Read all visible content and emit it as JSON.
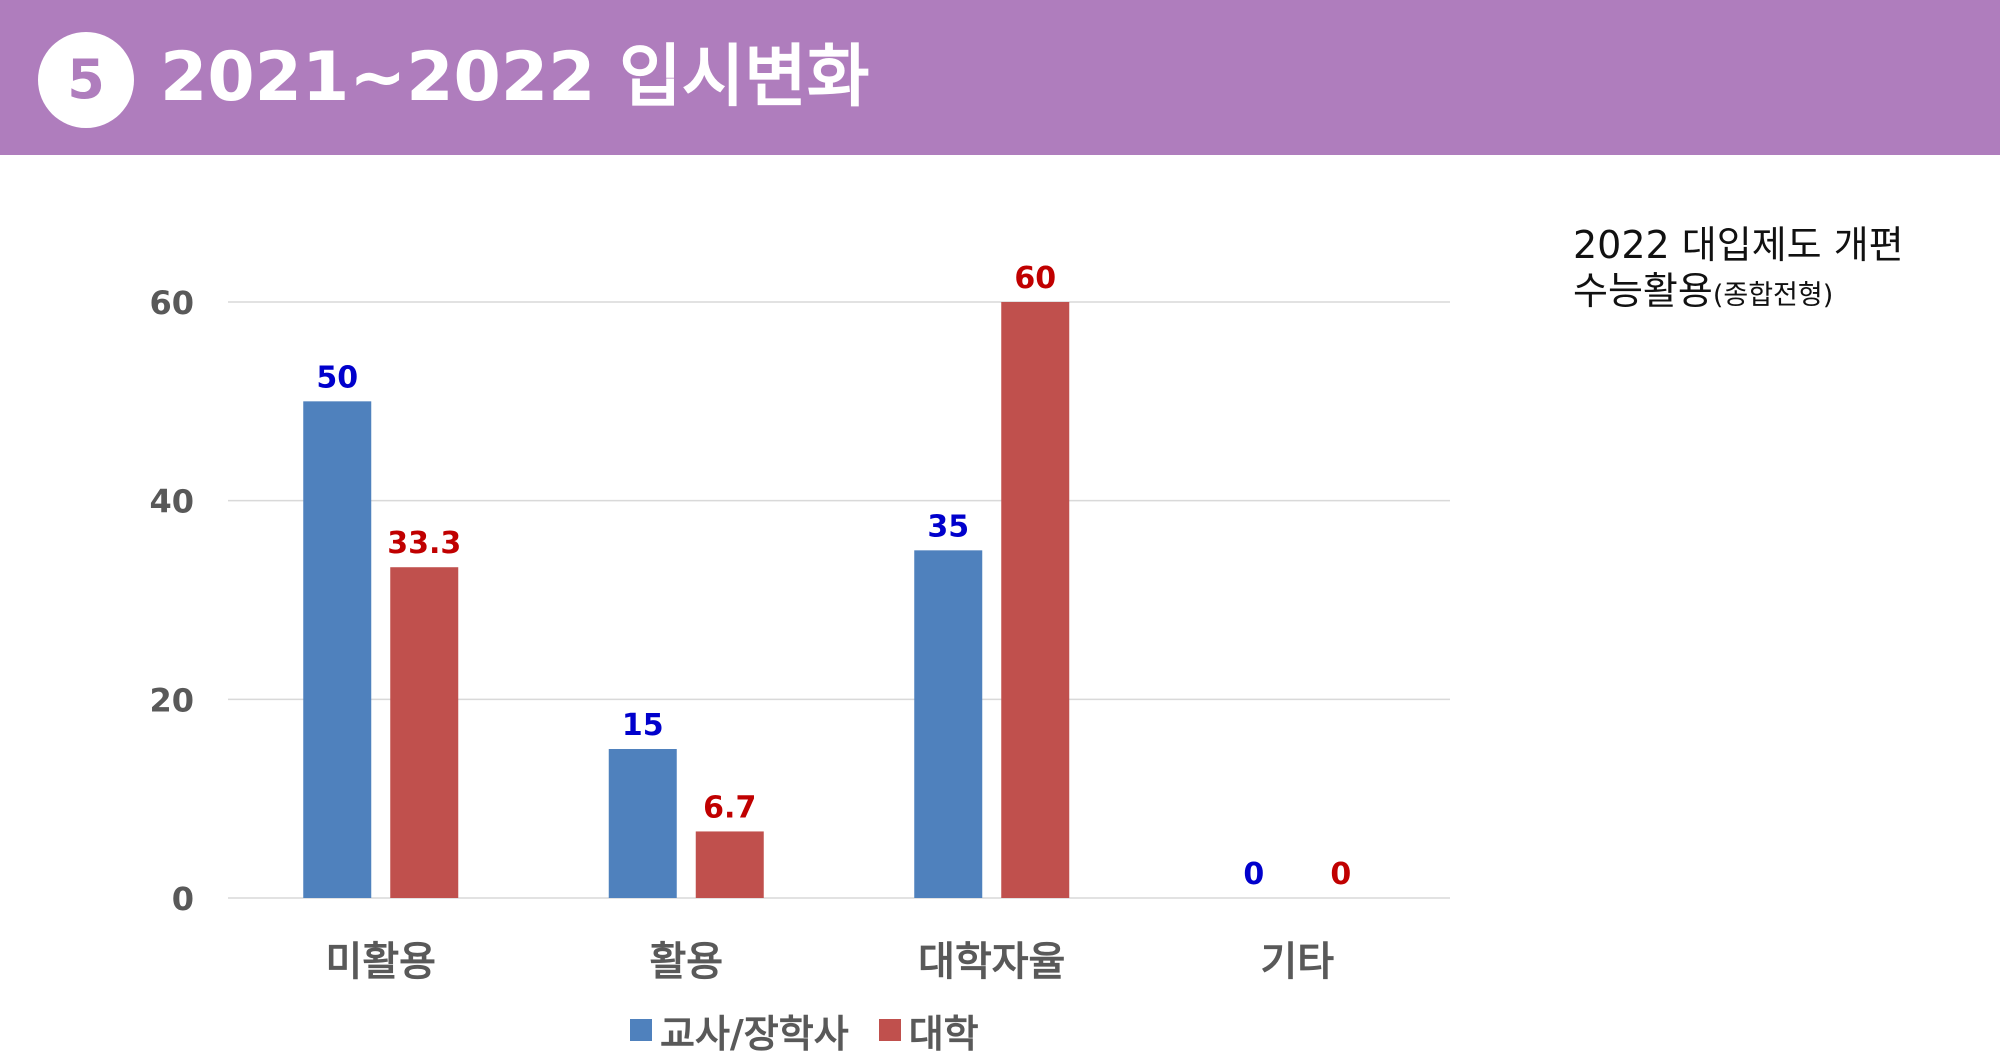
{
  "header": {
    "badge_number": "5",
    "title": "2021~2022 입시변화",
    "background_color": "#AF7DBD"
  },
  "side_note": {
    "line1": "2022 대입제도 개편",
    "line2_main": "수능활용",
    "line2_small": "(종합전형)"
  },
  "chart_data": {
    "type": "bar",
    "categories": [
      "미활용",
      "활용",
      "대학자율",
      "기타"
    ],
    "series": [
      {
        "name": "교사/장학사",
        "values": [
          50,
          15,
          35,
          0
        ],
        "color": "#4F81BD",
        "label_color": "#0000CC"
      },
      {
        "name": "대학",
        "values": [
          33.3,
          6.7,
          60,
          0
        ],
        "color": "#C0504D",
        "label_color": "#C00000"
      }
    ],
    "data_labels": [
      [
        "50",
        "15",
        "35",
        "0"
      ],
      [
        "33.3",
        "6.7",
        "60",
        "0"
      ]
    ],
    "yticks": [
      "0",
      "20",
      "40",
      "60"
    ],
    "ylim": [
      0,
      60
    ],
    "grid": true,
    "legend_position": "bottom"
  }
}
